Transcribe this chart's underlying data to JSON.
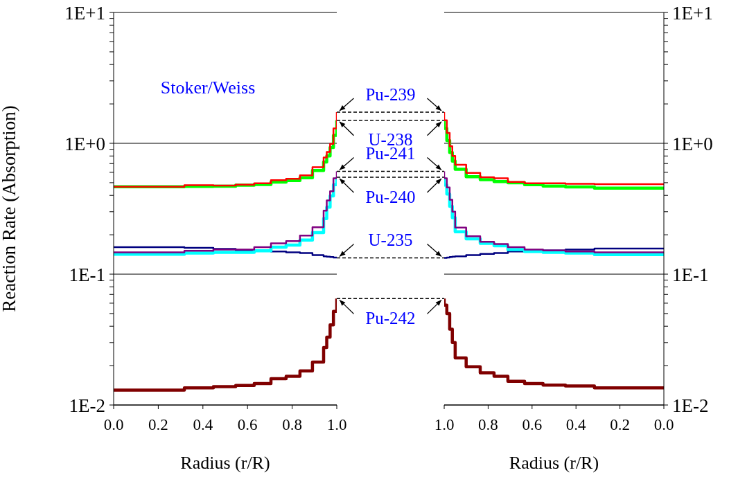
{
  "chart_data": [
    {
      "type": "step",
      "title": "Stoker/Weiss",
      "xlabel": "Radius (r/R)",
      "ylabel": "Reaction Rate (Absorption)",
      "legend": false,
      "marker": "none",
      "line_style": "solid",
      "log": "y",
      "grid": "y",
      "xlim": [
        0,
        1
      ],
      "xticks": [
        {
          "value": 0,
          "label": "0.0"
        },
        {
          "value": 0.2,
          "label": "0.2"
        },
        {
          "value": 0.4,
          "label": "0.4"
        },
        {
          "value": 0.6,
          "label": "0.6"
        },
        {
          "value": 0.8,
          "label": "0.8"
        },
        {
          "value": 1,
          "label": "1.0"
        }
      ],
      "ylim": [
        0.01,
        10
      ],
      "yticks": [
        {
          "value": 0.01,
          "label": "1E-2"
        },
        {
          "value": 0.02,
          "label": null
        },
        {
          "value": 0.03,
          "label": null
        },
        {
          "value": 0.04,
          "label": null
        },
        {
          "value": 0.05,
          "label": null
        },
        {
          "value": 0.06,
          "label": null
        },
        {
          "value": 0.07,
          "label": null
        },
        {
          "value": 0.08,
          "label": null
        },
        {
          "value": 0.09,
          "label": null
        },
        {
          "value": 0.1,
          "label": "1E-1"
        },
        {
          "value": 0.2,
          "label": null
        },
        {
          "value": 0.3,
          "label": null
        },
        {
          "value": 0.4,
          "label": null
        },
        {
          "value": 0.5,
          "label": null
        },
        {
          "value": 0.6,
          "label": null
        },
        {
          "value": 0.7,
          "label": null
        },
        {
          "value": 0.8,
          "label": null
        },
        {
          "value": 0.9,
          "label": null
        },
        {
          "value": 1,
          "label": "1E+0"
        },
        {
          "value": 2,
          "label": null
        },
        {
          "value": 3,
          "label": null
        },
        {
          "value": 4,
          "label": null
        },
        {
          "value": 5,
          "label": null
        },
        {
          "value": 6,
          "label": null
        },
        {
          "value": 7,
          "label": null
        },
        {
          "value": 8,
          "label": null
        },
        {
          "value": 9,
          "label": null
        },
        {
          "value": 10,
          "label": "1E+1"
        }
      ],
      "x": [
        0,
        0.317,
        0.447,
        0.547,
        0.63,
        0.705,
        0.773,
        0.835,
        0.891,
        0.941,
        0.955,
        0.97,
        0.985,
        1.0
      ],
      "series": [
        {
          "name": "Pu-239",
          "color": "#ff0000",
          "values": [
            0.466,
            0.478,
            0.475,
            0.483,
            0.495,
            0.523,
            0.536,
            0.57,
            0.656,
            0.78,
            0.86,
            0.99,
            1.3,
            1.73
          ]
        },
        {
          "name": "U-238",
          "color": "#00ff00",
          "values": [
            0.466,
            0.468,
            0.47,
            0.478,
            0.485,
            0.505,
            0.52,
            0.545,
            0.62,
            0.72,
            0.8,
            0.93,
            1.15,
            1.5
          ]
        },
        {
          "name": "Pu-241",
          "color": "#800080",
          "values": [
            0.147,
            0.151,
            0.154,
            0.154,
            0.161,
            0.172,
            0.179,
            0.197,
            0.228,
            0.306,
            0.366,
            0.43,
            0.54,
            0.61
          ]
        },
        {
          "name": "Pu-240",
          "color": "#00ffff",
          "values": [
            0.142,
            0.145,
            0.147,
            0.147,
            0.151,
            0.161,
            0.167,
            0.182,
            0.208,
            0.266,
            0.325,
            0.396,
            0.483,
            0.55
          ]
        },
        {
          "name": "U-235",
          "color": "#000080",
          "values": [
            0.161,
            0.159,
            0.156,
            0.152,
            0.152,
            0.149,
            0.147,
            0.145,
            0.14,
            0.137,
            0.136,
            0.135,
            0.134,
            0.133
          ]
        },
        {
          "name": "Pu-242",
          "color": "#800000",
          "values": [
            0.013,
            0.0135,
            0.0138,
            0.0141,
            0.0146,
            0.0159,
            0.0166,
            0.0182,
            0.0213,
            0.0275,
            0.033,
            0.041,
            0.052,
            0.065
          ]
        }
      ]
    },
    {
      "type": "step",
      "xlabel": "Radius (r/R)",
      "legend": false,
      "marker": "none",
      "line_style": "solid",
      "log": "y",
      "grid": "y",
      "xlim": [
        1,
        0
      ],
      "xticks": [
        {
          "value": 1,
          "label": "1.0"
        },
        {
          "value": 0.8,
          "label": "0.8"
        },
        {
          "value": 0.6,
          "label": "0.6"
        },
        {
          "value": 0.4,
          "label": "0.4"
        },
        {
          "value": 0.2,
          "label": "0.2"
        },
        {
          "value": 0,
          "label": "0.0"
        }
      ],
      "ylim": [
        0.01,
        10
      ],
      "yticks": [
        {
          "value": 0.01,
          "label": "1E-2"
        },
        {
          "value": 0.02,
          "label": null
        },
        {
          "value": 0.03,
          "label": null
        },
        {
          "value": 0.04,
          "label": null
        },
        {
          "value": 0.05,
          "label": null
        },
        {
          "value": 0.06,
          "label": null
        },
        {
          "value": 0.07,
          "label": null
        },
        {
          "value": 0.08,
          "label": null
        },
        {
          "value": 0.09,
          "label": null
        },
        {
          "value": 0.1,
          "label": "1E-1"
        },
        {
          "value": 0.2,
          "label": null
        },
        {
          "value": 0.3,
          "label": null
        },
        {
          "value": 0.4,
          "label": null
        },
        {
          "value": 0.5,
          "label": null
        },
        {
          "value": 0.6,
          "label": null
        },
        {
          "value": 0.7,
          "label": null
        },
        {
          "value": 0.8,
          "label": null
        },
        {
          "value": 0.9,
          "label": null
        },
        {
          "value": 1,
          "label": "1E+0"
        },
        {
          "value": 2,
          "label": null
        },
        {
          "value": 3,
          "label": null
        },
        {
          "value": 4,
          "label": null
        },
        {
          "value": 5,
          "label": null
        },
        {
          "value": 6,
          "label": null
        },
        {
          "value": 7,
          "label": null
        },
        {
          "value": 8,
          "label": null
        },
        {
          "value": 9,
          "label": null
        },
        {
          "value": 10,
          "label": "1E+1"
        }
      ],
      "x": [
        0,
        0.316,
        0.448,
        0.55,
        0.634,
        0.71,
        0.773,
        0.836,
        0.9,
        0.95,
        0.963,
        0.975,
        0.988,
        1.0
      ],
      "series": [
        {
          "color": "#ff0000",
          "values": [
            0.487,
            0.49,
            0.495,
            0.495,
            0.507,
            0.54,
            0.55,
            0.594,
            0.685,
            0.8,
            0.95,
            1.2,
            1.5,
            1.73
          ]
        },
        {
          "color": "#00ff00",
          "values": [
            0.455,
            0.464,
            0.472,
            0.483,
            0.499,
            0.51,
            0.527,
            0.555,
            0.633,
            0.73,
            0.85,
            1.05,
            1.3,
            1.5
          ]
        },
        {
          "color": "#800080",
          "values": [
            0.147,
            0.149,
            0.152,
            0.154,
            0.161,
            0.17,
            0.177,
            0.195,
            0.227,
            0.3,
            0.37,
            0.46,
            0.54,
            0.61
          ]
        },
        {
          "color": "#00ffff",
          "values": [
            0.141,
            0.145,
            0.147,
            0.149,
            0.154,
            0.165,
            0.172,
            0.186,
            0.211,
            0.27,
            0.33,
            0.41,
            0.48,
            0.55
          ]
        },
        {
          "color": "#000080",
          "values": [
            0.157,
            0.154,
            0.152,
            0.151,
            0.149,
            0.145,
            0.143,
            0.14,
            0.137,
            0.136,
            0.135,
            0.134,
            0.133,
            0.133
          ]
        },
        {
          "color": "#800000",
          "values": [
            0.0135,
            0.014,
            0.0142,
            0.0146,
            0.0152,
            0.0166,
            0.0176,
            0.0196,
            0.0229,
            0.03,
            0.038,
            0.05,
            0.058,
            0.065
          ]
        }
      ]
    }
  ]
}
